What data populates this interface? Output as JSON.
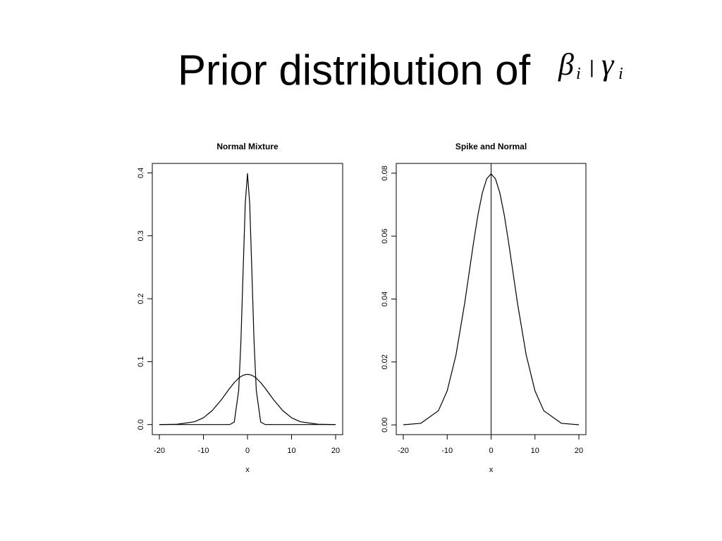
{
  "title": "Prior distribution of",
  "title_symbol": {
    "beta": "β",
    "beta_sub": "i",
    "separator": "|",
    "gamma": "γ",
    "gamma_sub": "i"
  },
  "chart_data": [
    {
      "type": "line",
      "title": "Normal Mixture",
      "x_label": "x",
      "x": [
        -20,
        -16,
        -12,
        -10,
        -8,
        -6,
        -4,
        -3,
        -2,
        -1.5,
        -1,
        -0.5,
        0,
        0.5,
        1,
        1.5,
        2,
        3,
        4,
        6,
        8,
        10,
        12,
        16,
        20
      ],
      "series": [
        {
          "color": "#000000",
          "values": [
            0,
            0,
            0,
            0,
            0,
            0,
            0.0001,
            0.004,
            0.054,
            0.13,
            0.242,
            0.352,
            0.399,
            0.352,
            0.242,
            0.13,
            0.054,
            0.004,
            0.0001,
            0,
            0,
            0,
            0,
            0,
            0
          ]
        },
        {
          "color": "#000000",
          "values": [
            3e-05,
            0.0005,
            0.0045,
            0.0108,
            0.0222,
            0.0388,
            0.0579,
            0.0667,
            0.0737,
            0.0763,
            0.0782,
            0.0794,
            0.0798,
            0.0794,
            0.0782,
            0.0763,
            0.0737,
            0.0667,
            0.0579,
            0.0388,
            0.0222,
            0.0108,
            0.0045,
            0.0005,
            3e-05
          ]
        }
      ],
      "xlim": [
        -21.6,
        21.6
      ],
      "xticks": [
        -20,
        -10,
        0,
        10,
        20
      ],
      "ylim": [
        -0.016,
        0.415
      ],
      "yticks": [
        {
          "value": 0,
          "label": "0.0"
        },
        0.1,
        0.2,
        0.3,
        0.4
      ]
    },
    {
      "type": "line",
      "title": "Spike and Normal",
      "x_label": "x",
      "x": [
        -20,
        -16,
        -12,
        -10,
        -8,
        -6,
        -4,
        -3,
        -2,
        -1,
        0,
        1,
        2,
        3,
        4,
        6,
        8,
        10,
        12,
        16,
        20
      ],
      "series": [
        {
          "color": "#000000",
          "values": [
            3e-05,
            0.0005,
            0.0045,
            0.0108,
            0.0222,
            0.0388,
            0.0579,
            0.0667,
            0.0737,
            0.0782,
            0.0798,
            0.0782,
            0.0737,
            0.0667,
            0.0579,
            0.0388,
            0.0222,
            0.0108,
            0.0045,
            0.0005,
            3e-05
          ]
        }
      ],
      "vline": 0,
      "xlim": [
        -21.6,
        21.6
      ],
      "xticks": [
        -20,
        -10,
        0,
        10,
        20
      ],
      "ylim": [
        -0.0031,
        0.0831
      ],
      "yticks": [
        {
          "value": 0,
          "label": "0.00"
        },
        {
          "value": 0.02,
          "label": "0.02"
        },
        {
          "value": 0.04,
          "label": "0.04"
        },
        {
          "value": 0.06,
          "label": "0.06"
        },
        {
          "value": 0.08,
          "label": "0.08"
        }
      ]
    }
  ]
}
